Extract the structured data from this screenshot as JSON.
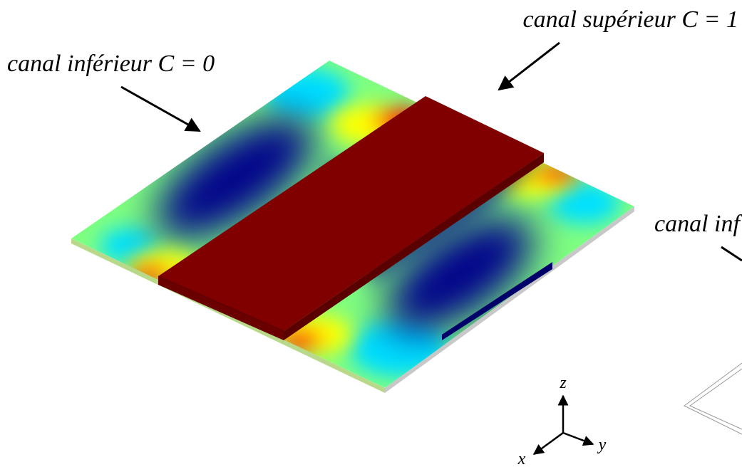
{
  "labels": {
    "lower_left": "canal inférieur C = 0",
    "upper": "canal supérieur C = 1",
    "lower_right": "canal inf"
  },
  "axes": {
    "z": "z",
    "y": "y",
    "x": "x"
  }
}
